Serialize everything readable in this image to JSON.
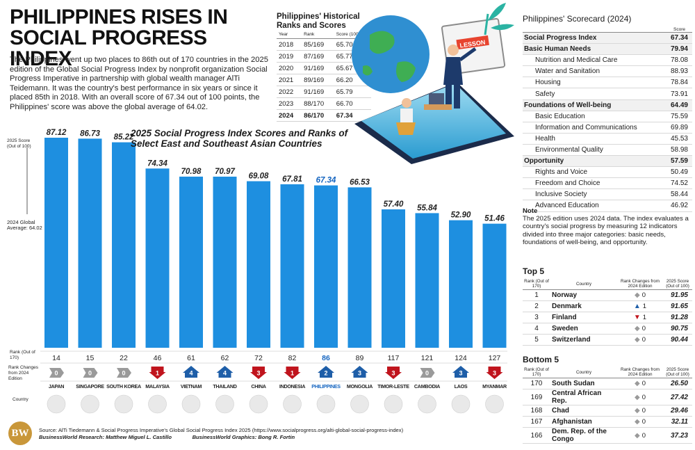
{
  "title_line1": "PHILIPPINES RISES IN",
  "title_line2": "SOCIAL PROGRESS INDEX",
  "intro": "The Philippines went up two places to 86th out of 170 countries in the 2025 edition of the Global Social Progress Index by nonprofit organization Social Progress Imperative in partnership with global wealth manager AlTi Teidemann. It was the country's best performance in six years or since it placed 85th in 2018. With an overall score of 67.34 out of 100 points, the Philippines' score was above the global average of 64.02.",
  "historical": {
    "title": "Philippines' Historical Ranks and Scores",
    "headers": [
      "Year",
      "Rank",
      "Score (100)"
    ],
    "rows": [
      [
        "2018",
        "85/169",
        "65.70"
      ],
      [
        "2019",
        "87/169",
        "65.77"
      ],
      [
        "2020",
        "91/169",
        "65.67"
      ],
      [
        "2021",
        "89/169",
        "66.20"
      ],
      [
        "2022",
        "91/169",
        "65.79"
      ],
      [
        "2023",
        "88/170",
        "66.70"
      ],
      [
        "2024",
        "86/170",
        "67.34"
      ]
    ]
  },
  "illustration": {
    "screen_label": "LESSON"
  },
  "chart_subtitle": "2025 Social Progress Index Scores and Ranks of Select East and Southeast Asian Countries",
  "chart_data": {
    "type": "bar",
    "title": "2025 Social Progress Index Scores and Ranks of Select East and Southeast Asian Countries",
    "ylabel": "2025 Score (Out of 100)",
    "reference_line_label": "2024 Global Average: 64.02",
    "reference_value": 64.02,
    "categories": [
      "JAPAN",
      "SINGAPORE",
      "SOUTH KOREA",
      "MALAYSIA",
      "VIETNAM",
      "THAILAND",
      "CHINA",
      "INDONESIA",
      "PHILIPPINES",
      "MONGOLIA",
      "TIMOR-LESTE",
      "CAMBODIA",
      "LAOS",
      "MYANMAR"
    ],
    "values": [
      87.12,
      86.73,
      85.22,
      74.34,
      70.98,
      70.97,
      69.08,
      67.81,
      67.34,
      66.53,
      57.4,
      55.84,
      52.9,
      51.46
    ],
    "value_labels": [
      "87.12",
      "86.73",
      "85.22",
      "74.34",
      "70.98",
      "70.97",
      "69.08",
      "67.81",
      "67.34",
      "66.53",
      "57.40",
      "55.84",
      "52.90",
      "51.46"
    ],
    "ranks": [
      14,
      15,
      22,
      46,
      61,
      62,
      72,
      82,
      86,
      89,
      117,
      121,
      124,
      127
    ],
    "rank_changes": [
      0,
      0,
      0,
      1,
      4,
      4,
      3,
      1,
      2,
      3,
      3,
      0,
      3,
      3
    ],
    "rank_change_direction": [
      "none",
      "none",
      "none",
      "down",
      "up",
      "up",
      "down",
      "down",
      "up",
      "up",
      "down",
      "none",
      "up",
      "down"
    ],
    "row_labels": {
      "rank": "Rank (Out of 170)",
      "change": "Rank Changes from 2024 Edition",
      "country": "Country"
    },
    "highlight": "PHILIPPINES",
    "colors": {
      "bar": "#1e8fe0",
      "highlight_text": "#1565c0",
      "up": "#1e5ea8",
      "down": "#c0141d",
      "none": "#9a9a9a"
    }
  },
  "scorecard": {
    "title": "Philippines' Scorecard (2024)",
    "score_header": "Score",
    "rows": [
      {
        "label": "Social Progress Index",
        "value": "67.34",
        "kind": "cat"
      },
      {
        "label": "Basic Human Needs",
        "value": "79.94",
        "kind": "cat"
      },
      {
        "label": "Nutrition and Medical Care",
        "value": "78.08",
        "kind": "sub"
      },
      {
        "label": "Water and Sanitation",
        "value": "88.93",
        "kind": "sub"
      },
      {
        "label": "Housing",
        "value": "78.84",
        "kind": "sub"
      },
      {
        "label": "Safety",
        "value": "73.91",
        "kind": "sub"
      },
      {
        "label": "Foundations of Well-being",
        "value": "64.49",
        "kind": "cat"
      },
      {
        "label": "Basic Education",
        "value": "75.59",
        "kind": "sub"
      },
      {
        "label": "Information and Communications",
        "value": "69.89",
        "kind": "sub"
      },
      {
        "label": "Health",
        "value": "45.53",
        "kind": "sub"
      },
      {
        "label": "Environmental Quality",
        "value": "58.98",
        "kind": "sub"
      },
      {
        "label": "Opportunity",
        "value": "57.59",
        "kind": "cat"
      },
      {
        "label": "Rights and Voice",
        "value": "50.49",
        "kind": "sub"
      },
      {
        "label": "Freedom and Choice",
        "value": "74.52",
        "kind": "sub"
      },
      {
        "label": "Inclusive Society",
        "value": "58.44",
        "kind": "sub"
      },
      {
        "label": "Advanced Education",
        "value": "46.92",
        "kind": "sub"
      }
    ]
  },
  "note": {
    "heading": "Note",
    "text": "The 2025 edition uses 2024 data. The index evaluates a country's social progress by measuring 12 indicators divided into three major categories: basic needs, foundations of well-being, and opportunity."
  },
  "ranking_headers": [
    "Rank (Out of 170)",
    "Country",
    "Rank Changes from 2024 Edition",
    "2025 Score (Out of 100)"
  ],
  "top5": {
    "title": "Top 5",
    "rows": [
      {
        "rank": "1",
        "country": "Norway",
        "change": "0",
        "dir": "none",
        "score": "91.95"
      },
      {
        "rank": "2",
        "country": "Denmark",
        "change": "1",
        "dir": "up",
        "score": "91.65"
      },
      {
        "rank": "3",
        "country": "Finland",
        "change": "1",
        "dir": "down",
        "score": "91.28"
      },
      {
        "rank": "4",
        "country": "Sweden",
        "change": "0",
        "dir": "none",
        "score": "90.75"
      },
      {
        "rank": "5",
        "country": "Switzerland",
        "change": "0",
        "dir": "none",
        "score": "90.44"
      }
    ]
  },
  "bottom5": {
    "title": "Bottom 5",
    "rows": [
      {
        "rank": "170",
        "country": "South Sudan",
        "change": "0",
        "dir": "none",
        "score": "26.50"
      },
      {
        "rank": "169",
        "country": "Central African Rep.",
        "change": "0",
        "dir": "none",
        "score": "27.42"
      },
      {
        "rank": "168",
        "country": "Chad",
        "change": "0",
        "dir": "none",
        "score": "29.46"
      },
      {
        "rank": "167",
        "country": "Afghanistan",
        "change": "0",
        "dir": "none",
        "score": "32.11"
      },
      {
        "rank": "166",
        "country": "Dem. Rep. of the Congo",
        "change": "0",
        "dir": "none",
        "score": "37.23"
      }
    ]
  },
  "source": {
    "line1": "Source: AlTi Tiedemann & Social Progress Imperative's Global Social Progress Index 2025 (https://www.socialprogress.org/alti-global-social-progress-index)",
    "research": "BusinessWorld Research: Matthew Miguel L. Castillo",
    "graphics": "BusinessWorld Graphics: Bong R. Fortin"
  },
  "logo_text": "BW"
}
